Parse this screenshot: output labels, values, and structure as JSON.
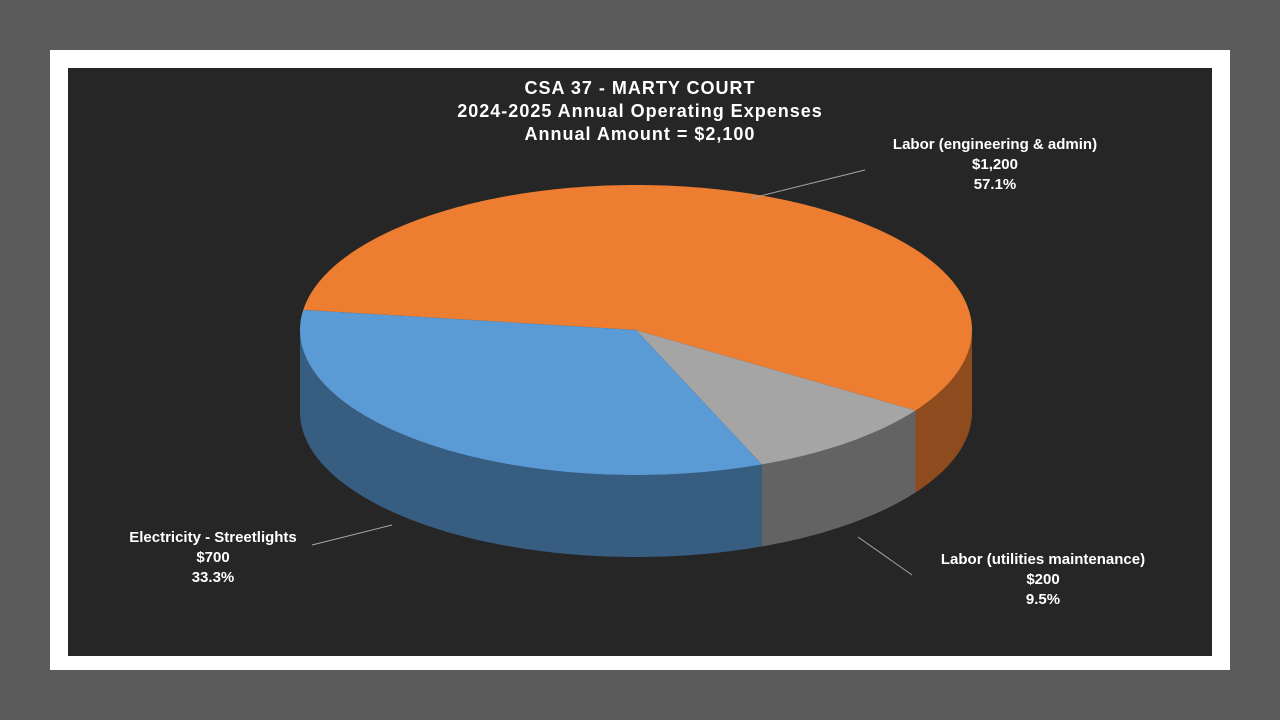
{
  "chart_data": {
    "type": "pie3d",
    "title": "CSA 37 - MARTY COURT",
    "subtitle": "2024-2025 Annual Operating Expenses",
    "total_label": "Annual Amount = $2,100",
    "categories": [
      "Labor (engineering & admin)",
      "Labor (utilities maintenance)",
      "Electricity - Streetlights"
    ],
    "values": [
      1200,
      200,
      700
    ],
    "value_labels": [
      "$1,200",
      "$200",
      "$700"
    ],
    "percents": [
      57.1,
      9.5,
      33.3
    ],
    "percent_labels": [
      "57.1%",
      "9.5%",
      "33.3%"
    ],
    "colors": [
      "#ed7d31",
      "#a5a5a5",
      "#5b9bd5"
    ]
  }
}
